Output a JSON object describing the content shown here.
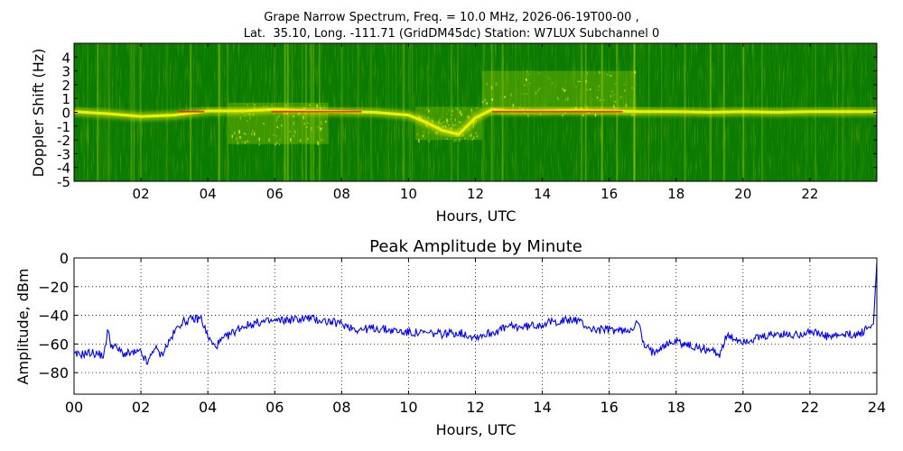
{
  "chart_data": [
    {
      "type": "heatmap",
      "title_lines": [
        "Grape Narrow Spectrum, Freq. = 10.0 MHz, 2026-06-19T00-00 ,",
        "Lat.  35.10, Long. -111.71 (GridDM45dc) Station: W7LUX Subchannel 0"
      ],
      "xlabel": "Hours, UTC",
      "ylabel": "Doppler Shift (Hz)",
      "xlim": [
        0,
        24
      ],
      "ylim": [
        -5,
        5
      ],
      "x_ticks": [
        2,
        4,
        6,
        8,
        10,
        12,
        14,
        16,
        18,
        20,
        22
      ],
      "x_tick_labels": [
        "02",
        "04",
        "06",
        "08",
        "10",
        "12",
        "14",
        "16",
        "18",
        "20",
        "22"
      ],
      "y_ticks": [
        4,
        3,
        2,
        1,
        0,
        -1,
        -2,
        -3,
        -4,
        -5
      ],
      "y_tick_labels": [
        "4",
        "3",
        "2",
        "1",
        "0",
        "-1",
        "-2",
        "-3",
        "-4",
        "-5"
      ],
      "colormap": [
        "#007000",
        "#2a8c00",
        "#9acd00",
        "#f0f000",
        "#ff2000"
      ],
      "doppler_trace": {
        "hours": [
          0,
          1,
          2,
          3,
          4,
          5,
          6,
          7,
          8,
          9,
          10,
          10.5,
          11,
          11.5,
          12,
          12.5,
          13,
          14,
          15,
          16,
          17,
          18,
          19,
          20,
          21,
          22,
          23,
          24
        ],
        "hz": [
          0.05,
          -0.1,
          -0.3,
          -0.2,
          0.1,
          0.1,
          0.2,
          0.1,
          0.05,
          0.0,
          -0.2,
          -0.7,
          -1.3,
          -1.6,
          -0.4,
          0.2,
          0.1,
          0.1,
          0.15,
          0.1,
          0.05,
          0.05,
          0.0,
          0.05,
          0.0,
          0.05,
          0.05,
          0.05
        ]
      },
      "spread_regions": [
        {
          "from": 4.6,
          "to": 7.6,
          "low_hz": -2.3,
          "high_hz": 0.7
        },
        {
          "from": 10.2,
          "to": 12.2,
          "low_hz": -2.0,
          "high_hz": 0.4
        },
        {
          "from": 12.2,
          "to": 16.8,
          "low_hz": -0.2,
          "high_hz": 3.0
        }
      ],
      "strong_segments": [
        [
          3.1,
          3.9
        ],
        [
          5.9,
          8.6
        ],
        [
          12.5,
          16.4
        ]
      ]
    },
    {
      "type": "line",
      "title": "Peak Amplitude by Minute",
      "xlabel": "Hours, UTC",
      "ylabel": "Amplitude, dBm",
      "xlim": [
        0,
        24
      ],
      "ylim": [
        -95,
        0
      ],
      "x_ticks": [
        0,
        2,
        4,
        6,
        8,
        10,
        12,
        14,
        16,
        18,
        20,
        22,
        24
      ],
      "x_tick_labels": [
        "00",
        "02",
        "04",
        "06",
        "08",
        "10",
        "12",
        "14",
        "16",
        "18",
        "20",
        "22",
        "24"
      ],
      "y_ticks": [
        0,
        -20,
        -40,
        -60,
        -80
      ],
      "y_tick_labels": [
        "0",
        "−20",
        "−40",
        "−60",
        "−80"
      ],
      "grid": true,
      "line_color": "#0000ff",
      "x": [
        0,
        0.5,
        0.9,
        1.0,
        1.1,
        1.5,
        2.0,
        2.2,
        2.4,
        2.6,
        2.8,
        3.0,
        3.2,
        3.5,
        3.8,
        4.0,
        4.2,
        4.5,
        5.0,
        5.5,
        6.0,
        7.0,
        8.0,
        8.5,
        9.0,
        10.0,
        11.0,
        11.5,
        12.0,
        12.5,
        13.0,
        13.5,
        14.0,
        14.5,
        15.0,
        15.5,
        16.0,
        16.5,
        16.9,
        17.0,
        17.3,
        17.5,
        18.0,
        18.5,
        19.0,
        19.3,
        19.5,
        20.0,
        20.5,
        21.0,
        21.5,
        22.0,
        22.5,
        23.0,
        23.5,
        23.9,
        24.0
      ],
      "y": [
        -68,
        -66,
        -68,
        -50,
        -60,
        -67,
        -66,
        -74,
        -62,
        -68,
        -60,
        -52,
        -45,
        -43,
        -42,
        -55,
        -62,
        -56,
        -48,
        -45,
        -44,
        -42,
        -46,
        -50,
        -49,
        -52,
        -53,
        -52,
        -55,
        -52,
        -48,
        -48,
        -46,
        -44,
        -43,
        -50,
        -50,
        -51,
        -45,
        -60,
        -66,
        -62,
        -58,
        -62,
        -64,
        -67,
        -55,
        -58,
        -56,
        -53,
        -54,
        -51,
        -55,
        -54,
        -53,
        -46,
        -3
      ]
    }
  ]
}
